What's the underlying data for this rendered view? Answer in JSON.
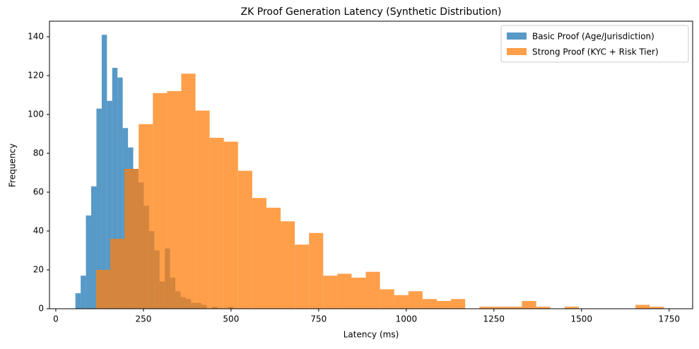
{
  "chart_data": {
    "type": "histogram",
    "title": "ZK Proof Generation Latency (Synthetic Distribution)",
    "x_label": "Latency (ms)",
    "y_label": "Frequency",
    "xlim": [
      -18,
      1817
    ],
    "ylim": [
      0,
      148
    ],
    "xticks": [
      0,
      250,
      500,
      750,
      1000,
      1250,
      1500,
      1750
    ],
    "yticks": [
      0,
      20,
      40,
      60,
      80,
      100,
      120,
      140
    ],
    "grid": false,
    "legend": "upper right",
    "opacity": 0.75,
    "series": [
      {
        "name": "Basic Proof (Age/Jurisdiction)",
        "color": "#1f77b4",
        "bins": [
          56,
          71,
          86,
          101,
          116,
          131,
          146,
          161,
          176,
          191,
          206,
          221,
          236,
          251,
          266,
          281,
          296,
          311,
          326,
          341,
          356,
          371,
          386,
          401,
          416,
          431,
          446,
          461,
          476,
          491,
          506
        ],
        "values": [
          8,
          17,
          48,
          63,
          103,
          141,
          107,
          124,
          119,
          93,
          83,
          72,
          65,
          53,
          40,
          30,
          14,
          31,
          16,
          9,
          6,
          5,
          3,
          3,
          2,
          0,
          1,
          0,
          0,
          1
        ]
      },
      {
        "name": "Strong Proof (KYC + Risk Tier)",
        "color": "#ff7f0e",
        "bins": [
          115,
          155.5,
          196,
          236.5,
          277,
          317.5,
          358,
          398.5,
          439,
          479.5,
          520,
          560.5,
          601,
          641.5,
          682,
          722.5,
          763,
          803.5,
          844,
          884.5,
          925,
          965.5,
          1006,
          1046.5,
          1087,
          1127.5,
          1168,
          1208.5,
          1249,
          1289.5,
          1330,
          1370.5,
          1411,
          1451.5,
          1492,
          1532.5,
          1573,
          1613.5,
          1654,
          1694.5,
          1735
        ],
        "values": [
          20,
          36,
          72,
          95,
          111,
          112,
          121,
          102,
          88,
          86,
          71,
          57,
          52,
          45,
          33,
          39,
          17,
          18,
          16,
          19,
          10,
          7,
          9,
          5,
          4,
          5,
          0,
          1,
          1,
          1,
          4,
          1,
          0,
          1,
          0,
          0,
          0,
          0,
          2,
          1
        ]
      }
    ]
  }
}
